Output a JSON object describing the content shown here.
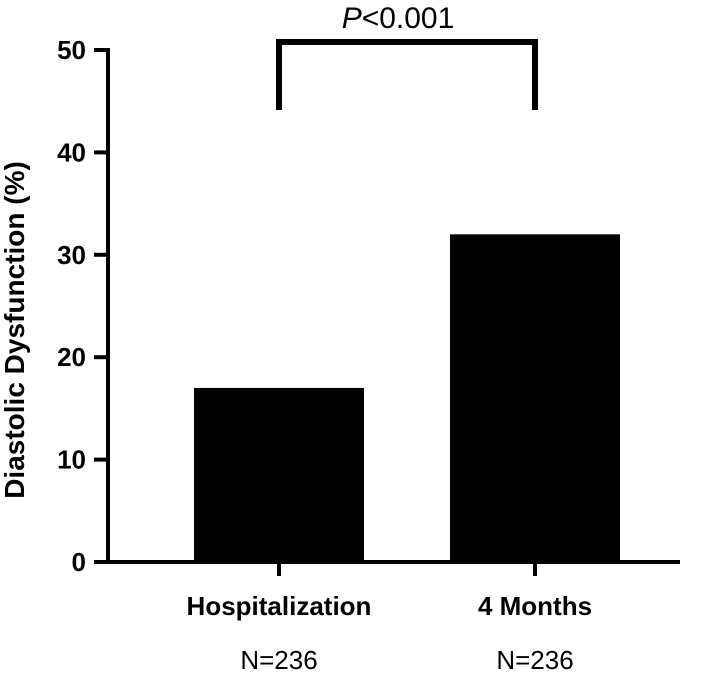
{
  "chart_data": {
    "type": "bar",
    "categories": [
      "Hospitalization",
      "4 Months"
    ],
    "sample_sizes": [
      "N=236",
      "N=236"
    ],
    "values": [
      17,
      32
    ],
    "ylabel": "Diastolic Dysfunction (%)",
    "xlabel": "",
    "title": "",
    "ylim": [
      0,
      50
    ],
    "yticks": [
      "0",
      "10",
      "20",
      "30",
      "40",
      "50"
    ],
    "grid": false,
    "bar_color": "#000000",
    "significance": {
      "p_italic": "P",
      "p_rest": "<0.001",
      "between": [
        "Hospitalization",
        "4 Months"
      ]
    }
  }
}
